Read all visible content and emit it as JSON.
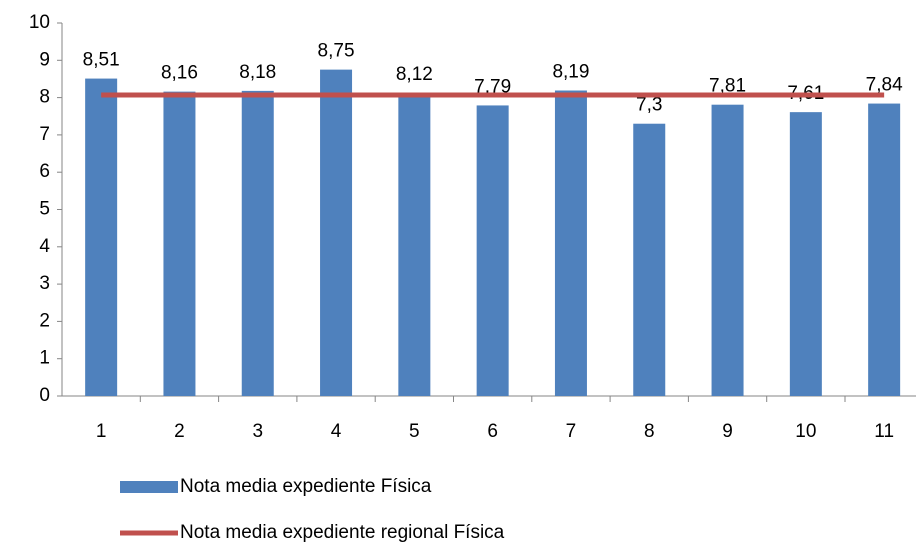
{
  "chart_data": {
    "type": "bar",
    "categories": [
      "1",
      "2",
      "3",
      "4",
      "5",
      "6",
      "7",
      "8",
      "9",
      "10",
      "11"
    ],
    "series": [
      {
        "name": "Nota media expediente Física",
        "type": "bar",
        "color": "#4f81bd",
        "values": [
          8.51,
          8.16,
          8.18,
          8.75,
          8.12,
          7.79,
          8.19,
          7.3,
          7.81,
          7.61,
          7.84
        ],
        "value_labels": [
          "8,51",
          "8,16",
          "8,18",
          "8,75",
          "8,12",
          "7,79",
          "8,19",
          "7,3",
          "7,81",
          "7,61",
          "7,84"
        ]
      },
      {
        "name": "Nota media expediente regional Física",
        "type": "line",
        "color": "#c0504d",
        "values": [
          8.07,
          8.07,
          8.07,
          8.07,
          8.07,
          8.07,
          8.07,
          8.07,
          8.07,
          8.07,
          8.07
        ]
      }
    ],
    "ylim": [
      0,
      10
    ],
    "yticks": [
      0,
      1,
      2,
      3,
      4,
      5,
      6,
      7,
      8,
      9,
      10
    ],
    "grid": false,
    "legend": "bottom"
  }
}
